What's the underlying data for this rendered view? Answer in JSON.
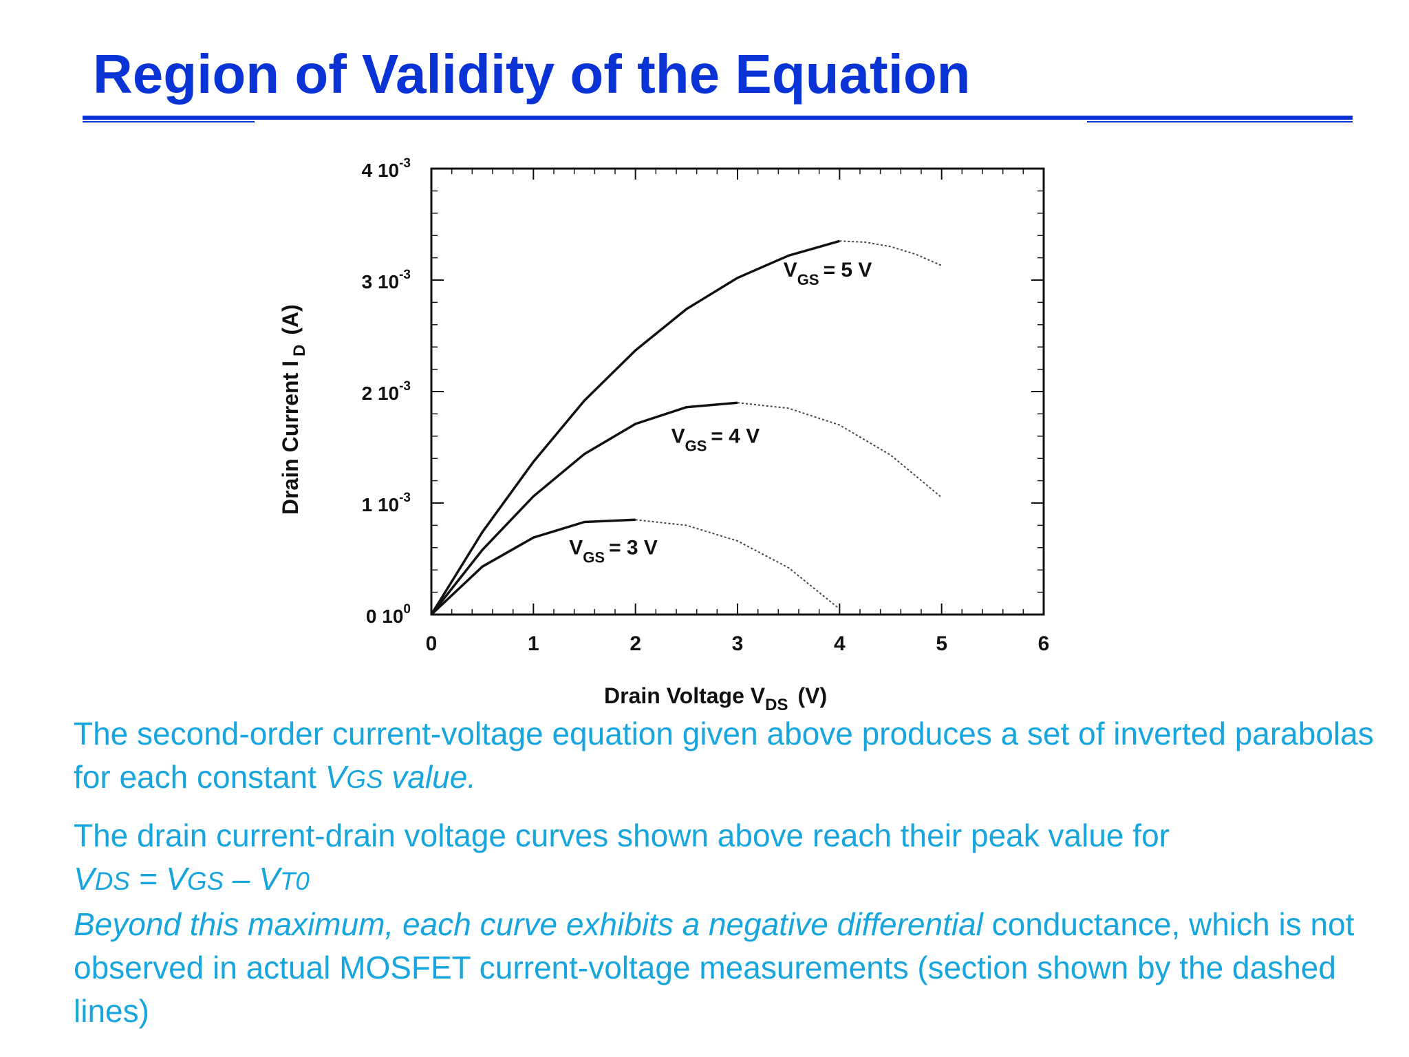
{
  "slide": {
    "title": "Region of Validity of the Equation"
  },
  "chart_data": {
    "type": "line",
    "xlabel": {
      "main": "Drain Voltage V",
      "sub": "DS",
      "unit": "(V)"
    },
    "ylabel": {
      "main": "Drain Current I",
      "sub": "D",
      "unit": "(A)"
    },
    "xlim": [
      0,
      6
    ],
    "ylim": [
      0,
      0.004
    ],
    "x_ticks": [
      "0",
      "1",
      "2",
      "3",
      "4",
      "5",
      "6"
    ],
    "y_ticks": [
      {
        "base": "0 10",
        "exp": "0"
      },
      {
        "base": "1 10",
        "exp": "-3"
      },
      {
        "base": "2 10",
        "exp": "-3"
      },
      {
        "base": "3 10",
        "exp": "-3"
      },
      {
        "base": "4 10",
        "exp": "-3"
      }
    ],
    "series": [
      {
        "name": "V_GS = 5 V",
        "label_main": "V",
        "label_sub": "GS",
        "label_rest": "= 5 V",
        "label_at": [
          3.45,
          0.00303
        ],
        "solid": {
          "x": [
            0,
            0.5,
            1,
            1.5,
            2,
            2.5,
            3,
            3.5,
            4
          ],
          "y": [
            0,
            0.00074,
            0.00137,
            0.00192,
            0.00237,
            0.00274,
            0.00302,
            0.00322,
            0.00335
          ]
        },
        "dashed": {
          "x": [
            4,
            4.25,
            4.5,
            4.75,
            5
          ],
          "y": [
            0.00335,
            0.00334,
            0.0033,
            0.00323,
            0.00313
          ]
        }
      },
      {
        "name": "V_GS = 4 V",
        "label_main": "V",
        "label_sub": "GS",
        "label_rest": "= 4 V",
        "label_at": [
          2.35,
          0.00154
        ],
        "solid": {
          "x": [
            0,
            0.5,
            1,
            1.5,
            2,
            2.5,
            3
          ],
          "y": [
            0,
            0.00058,
            0.00106,
            0.00144,
            0.00171,
            0.00186,
            0.0019
          ]
        },
        "dashed": {
          "x": [
            3,
            3.5,
            4,
            4.5,
            5
          ],
          "y": [
            0.0019,
            0.00185,
            0.0017,
            0.00143,
            0.00105
          ]
        }
      },
      {
        "name": "V_GS = 3 V",
        "label_main": "V",
        "label_sub": "GS",
        "label_rest": "= 3 V",
        "label_at": [
          1.35,
          0.00054
        ],
        "solid": {
          "x": [
            0,
            0.5,
            1,
            1.5,
            2
          ],
          "y": [
            0,
            0.00043,
            0.00069,
            0.00083,
            0.00085
          ]
        },
        "dashed": {
          "x": [
            2,
            2.5,
            3,
            3.5,
            4
          ],
          "y": [
            0.00085,
            0.0008,
            0.00066,
            0.00042,
            5e-05
          ]
        }
      }
    ]
  },
  "body": {
    "p1": {
      "text": "The second-order current-voltage equation given above produces a set of inverted parabolas for each constant ",
      "v": "V",
      "gs": "GS",
      "tail": " value."
    },
    "p2": {
      "line1": "The drain current-drain voltage curves shown above reach their peak value for",
      "v1": "V",
      "ds": "DS",
      "eq": " = ",
      "v2": "V",
      "gs": "GS",
      "minus": " – ",
      "v3": "V",
      "t0": "T0",
      "italic_lead": "Beyond this maximum, each curve exhibits a negative differential",
      "rest": " conductance, which is not observed in actual MOSFET current-voltage measurements (section shown by the dashed lines)"
    }
  }
}
